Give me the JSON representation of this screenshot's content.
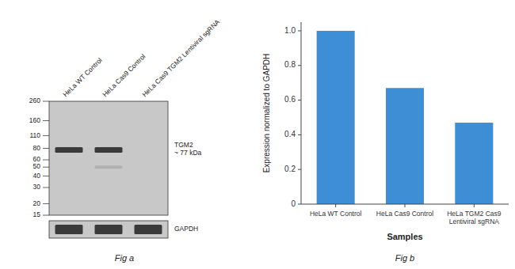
{
  "chart_data": [
    {
      "type": "blot",
      "title": "Fig a",
      "categories": [
        "HeLa WT Control",
        "HeLa Cas9 Control",
        "HeLa Cas9 TGM2 Lentiviral sgRNA"
      ],
      "log": "y",
      "ylim": [
        15,
        260
      ],
      "yticks": [
        260,
        160,
        110,
        80,
        60,
        50,
        40,
        30,
        20,
        15
      ],
      "color": "#c8c8c8",
      "series": [
        {
          "name": "TGM2\n~ 77 kDa",
          "color": "#3a3a3a",
          "values": [
            77,
            77,
            null
          ]
        },
        {
          "color": "#b0b0b0",
          "values": [
            null,
            50,
            null
          ]
        },
        {
          "name": "GAPDH",
          "type": "strip",
          "color": "#3a3a3a",
          "values": [
            true,
            true,
            true
          ]
        }
      ]
    },
    {
      "type": "bar",
      "title": "Fig b",
      "categories": [
        "HeLa WT Control",
        "HeLa Cas9 Control",
        "HeLa TGM2 Cas9\nLentiviral sgRNA"
      ],
      "values": [
        1.0,
        0.67,
        0.47
      ],
      "color": "#3d8ed4",
      "xlabel": "Samples",
      "ylabel": "Expression normalized to GAPDH",
      "ylim": [
        0,
        1.05
      ],
      "yticks": [
        0,
        0.2,
        0.4,
        0.6,
        0.8,
        {
          "value": 1.0,
          "label": "1.0"
        }
      ]
    }
  ]
}
